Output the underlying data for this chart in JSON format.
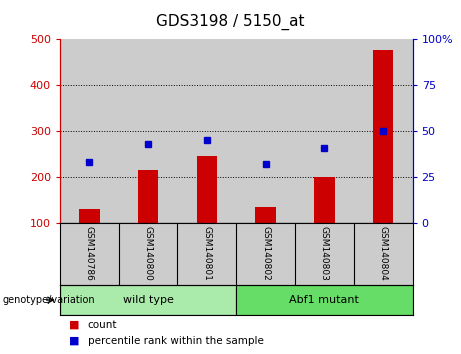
{
  "title": "GDS3198 / 5150_at",
  "categories": [
    "GSM140786",
    "GSM140800",
    "GSM140801",
    "GSM140802",
    "GSM140803",
    "GSM140804"
  ],
  "bar_values": [
    130,
    215,
    245,
    135,
    200,
    475
  ],
  "scatter_values_pct": [
    33,
    43,
    45,
    32,
    41,
    50
  ],
  "bar_color": "#cc0000",
  "scatter_color": "#0000cc",
  "ylim_left": [
    100,
    500
  ],
  "ylim_right": [
    0,
    100
  ],
  "yticks_left": [
    100,
    200,
    300,
    400,
    500
  ],
  "yticks_right": [
    0,
    25,
    50,
    75,
    100
  ],
  "yticklabels_right": [
    "0",
    "25",
    "50",
    "75",
    "100%"
  ],
  "grid_values": [
    200,
    300,
    400
  ],
  "groups": [
    {
      "label": "wild type",
      "indices": [
        0,
        1,
        2
      ],
      "color": "#aaeaaa"
    },
    {
      "label": "Abf1 mutant",
      "indices": [
        3,
        4,
        5
      ],
      "color": "#66dd66"
    }
  ],
  "group_label": "genotype/variation",
  "legend_items": [
    {
      "label": "count",
      "color": "#cc0000"
    },
    {
      "label": "percentile rank within the sample",
      "color": "#0000cc"
    }
  ],
  "bg_color": "#ffffff",
  "cat_box_color": "#cccccc",
  "title_fontsize": 11,
  "tick_fontsize": 8,
  "cat_fontsize": 6.5,
  "grp_fontsize": 8,
  "legend_fontsize": 7.5
}
